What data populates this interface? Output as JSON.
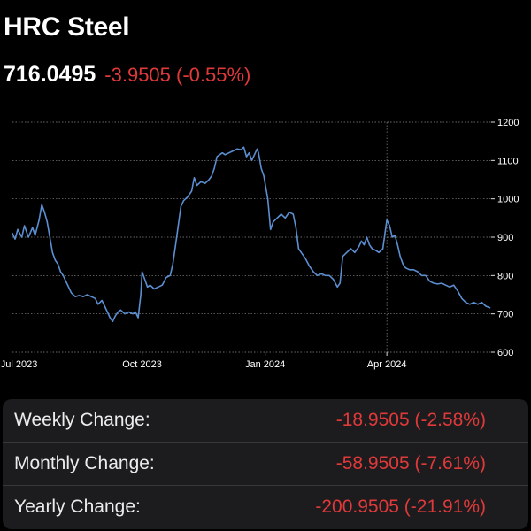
{
  "header": {
    "title": "HRC Steel",
    "price": "716.0495",
    "change": "-3.9505 (-0.55%)"
  },
  "colors": {
    "background": "#000000",
    "line": "#5b8fd1",
    "negative": "#e0393a",
    "panel": "#1c1c1e",
    "grid": "#8a8a8a"
  },
  "chart_data": {
    "type": "line",
    "title": "",
    "xlabel": "",
    "ylabel": "",
    "ylim": [
      600,
      1200
    ],
    "xlim": [
      "2023-06-26",
      "2024-06-18"
    ],
    "x_ticks": [
      {
        "date": "2023-07-01",
        "label": "Jul 2023"
      },
      {
        "date": "2023-10-01",
        "label": "Oct 2023"
      },
      {
        "date": "2024-01-01",
        "label": "Jan 2024"
      },
      {
        "date": "2024-04-01",
        "label": "Apr 2024"
      }
    ],
    "y_ticks": [
      600,
      700,
      800,
      900,
      1000,
      1100,
      1200
    ],
    "y_axis_side": "right",
    "grid": true,
    "series": [
      {
        "values": [
          [
            "2023-06-26",
            910
          ],
          [
            "2023-06-28",
            895
          ],
          [
            "2023-06-30",
            920
          ],
          [
            "2023-07-03",
            900
          ],
          [
            "2023-07-05",
            930
          ],
          [
            "2023-07-08",
            900
          ],
          [
            "2023-07-11",
            925
          ],
          [
            "2023-07-13",
            905
          ],
          [
            "2023-07-16",
            945
          ],
          [
            "2023-07-18",
            985
          ],
          [
            "2023-07-20",
            965
          ],
          [
            "2023-07-22",
            940
          ],
          [
            "2023-07-24",
            900
          ],
          [
            "2023-07-26",
            860
          ],
          [
            "2023-07-28",
            840
          ],
          [
            "2023-07-30",
            830
          ],
          [
            "2023-08-01",
            810
          ],
          [
            "2023-08-03",
            800
          ],
          [
            "2023-08-05",
            785
          ],
          [
            "2023-08-07",
            770
          ],
          [
            "2023-08-09",
            755
          ],
          [
            "2023-08-12",
            745
          ],
          [
            "2023-08-15",
            748
          ],
          [
            "2023-08-18",
            745
          ],
          [
            "2023-08-21",
            750
          ],
          [
            "2023-08-24",
            745
          ],
          [
            "2023-08-27",
            740
          ],
          [
            "2023-08-29",
            725
          ],
          [
            "2023-09-01",
            735
          ],
          [
            "2023-09-03",
            720
          ],
          [
            "2023-09-05",
            705
          ],
          [
            "2023-09-07",
            690
          ],
          [
            "2023-09-09",
            680
          ],
          [
            "2023-09-11",
            695
          ],
          [
            "2023-09-13",
            705
          ],
          [
            "2023-09-15",
            710
          ],
          [
            "2023-09-18",
            700
          ],
          [
            "2023-09-21",
            705
          ],
          [
            "2023-09-24",
            700
          ],
          [
            "2023-09-26",
            705
          ],
          [
            "2023-09-28",
            690
          ],
          [
            "2023-09-30",
            750
          ],
          [
            "2023-10-01",
            810
          ],
          [
            "2023-10-03",
            790
          ],
          [
            "2023-10-05",
            770
          ],
          [
            "2023-10-07",
            775
          ],
          [
            "2023-10-10",
            765
          ],
          [
            "2023-10-13",
            770
          ],
          [
            "2023-10-16",
            775
          ],
          [
            "2023-10-19",
            795
          ],
          [
            "2023-10-22",
            800
          ],
          [
            "2023-10-24",
            830
          ],
          [
            "2023-10-26",
            880
          ],
          [
            "2023-10-28",
            930
          ],
          [
            "2023-10-30",
            980
          ],
          [
            "2023-11-01",
            995
          ],
          [
            "2023-11-04",
            1005
          ],
          [
            "2023-11-07",
            1020
          ],
          [
            "2023-11-09",
            1055
          ],
          [
            "2023-11-11",
            1035
          ],
          [
            "2023-11-14",
            1045
          ],
          [
            "2023-11-17",
            1040
          ],
          [
            "2023-11-20",
            1050
          ],
          [
            "2023-11-22",
            1060
          ],
          [
            "2023-11-24",
            1080
          ],
          [
            "2023-11-26",
            1110
          ],
          [
            "2023-11-28",
            1115
          ],
          [
            "2023-11-30",
            1120
          ],
          [
            "2023-12-02",
            1115
          ],
          [
            "2023-12-05",
            1120
          ],
          [
            "2023-12-08",
            1125
          ],
          [
            "2023-12-11",
            1130
          ],
          [
            "2023-12-14",
            1128
          ],
          [
            "2023-12-16",
            1135
          ],
          [
            "2023-12-18",
            1110
          ],
          [
            "2023-12-20",
            1120
          ],
          [
            "2023-12-22",
            1100
          ],
          [
            "2023-12-24",
            1115
          ],
          [
            "2023-12-26",
            1130
          ],
          [
            "2023-12-27",
            1120
          ],
          [
            "2023-12-29",
            1080
          ],
          [
            "2023-12-31",
            1060
          ],
          [
            "2024-01-03",
            1000
          ],
          [
            "2024-01-05",
            920
          ],
          [
            "2024-01-07",
            940
          ],
          [
            "2024-01-10",
            950
          ],
          [
            "2024-01-13",
            960
          ],
          [
            "2024-01-16",
            950
          ],
          [
            "2024-01-19",
            965
          ],
          [
            "2024-01-22",
            960
          ],
          [
            "2024-01-24",
            925
          ],
          [
            "2024-01-26",
            870
          ],
          [
            "2024-01-28",
            860
          ],
          [
            "2024-01-31",
            845
          ],
          [
            "2024-02-03",
            825
          ],
          [
            "2024-02-06",
            810
          ],
          [
            "2024-02-09",
            800
          ],
          [
            "2024-02-12",
            805
          ],
          [
            "2024-02-15",
            800
          ],
          [
            "2024-02-18",
            800
          ],
          [
            "2024-02-21",
            790
          ],
          [
            "2024-02-24",
            770
          ],
          [
            "2024-02-26",
            780
          ],
          [
            "2024-02-28",
            850
          ],
          [
            "2024-03-02",
            860
          ],
          [
            "2024-03-05",
            870
          ],
          [
            "2024-03-08",
            860
          ],
          [
            "2024-03-11",
            875
          ],
          [
            "2024-03-13",
            890
          ],
          [
            "2024-03-15",
            880
          ],
          [
            "2024-03-17",
            900
          ],
          [
            "2024-03-19",
            880
          ],
          [
            "2024-03-21",
            870
          ],
          [
            "2024-03-24",
            865
          ],
          [
            "2024-03-26",
            860
          ],
          [
            "2024-03-29",
            870
          ],
          [
            "2024-04-01",
            945
          ],
          [
            "2024-04-03",
            930
          ],
          [
            "2024-04-05",
            900
          ],
          [
            "2024-04-07",
            905
          ],
          [
            "2024-04-09",
            880
          ],
          [
            "2024-04-11",
            850
          ],
          [
            "2024-04-13",
            830
          ],
          [
            "2024-04-15",
            820
          ],
          [
            "2024-04-18",
            815
          ],
          [
            "2024-04-21",
            815
          ],
          [
            "2024-04-24",
            810
          ],
          [
            "2024-04-27",
            800
          ],
          [
            "2024-04-30",
            800
          ],
          [
            "2024-05-03",
            785
          ],
          [
            "2024-05-06",
            780
          ],
          [
            "2024-05-09",
            778
          ],
          [
            "2024-05-12",
            780
          ],
          [
            "2024-05-15",
            775
          ],
          [
            "2024-05-18",
            770
          ],
          [
            "2024-05-21",
            775
          ],
          [
            "2024-05-24",
            760
          ],
          [
            "2024-05-27",
            740
          ],
          [
            "2024-05-30",
            730
          ],
          [
            "2024-06-02",
            725
          ],
          [
            "2024-06-05",
            730
          ],
          [
            "2024-06-08",
            725
          ],
          [
            "2024-06-11",
            730
          ],
          [
            "2024-06-14",
            720
          ],
          [
            "2024-06-17",
            716
          ]
        ]
      }
    ]
  },
  "stats": [
    {
      "label": "Weekly Change:",
      "value": "-18.9505 (-2.58%)"
    },
    {
      "label": "Monthly Change:",
      "value": "-58.9505 (-7.61%)"
    },
    {
      "label": "Yearly Change:",
      "value": "-200.9505 (-21.91%)"
    }
  ]
}
